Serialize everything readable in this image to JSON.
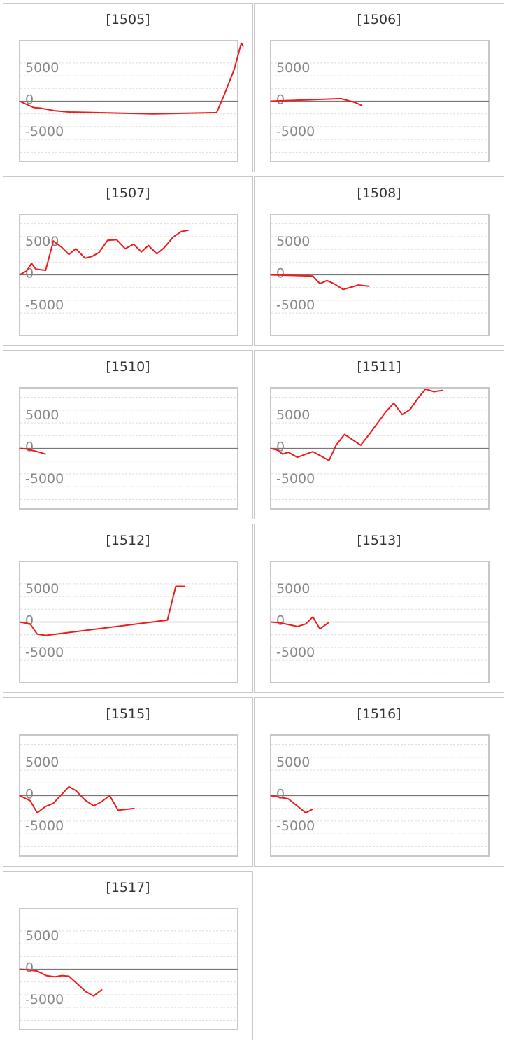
{
  "colors": {
    "line": "#ee1c1c",
    "frame": "#c8c8c8",
    "grid": "#dddddd",
    "zero": "#777777",
    "text": "#333333",
    "tick": "#888888"
  },
  "chart_data": [
    {
      "type": "line",
      "title": "[1505]",
      "ylim": [
        -9500,
        9500
      ],
      "yticks": [
        5000,
        0,
        -5000
      ],
      "xlim": [
        0,
        31
      ],
      "x": [
        0,
        2,
        3,
        5,
        7,
        19,
        28,
        29,
        30.5,
        31.5,
        31.8
      ],
      "values": [
        0,
        -1000,
        -1100,
        -1500,
        -1700,
        -2000,
        -1800,
        800,
        5000,
        9100,
        8600
      ]
    },
    {
      "type": "line",
      "title": "[1506]",
      "ylim": [
        -9500,
        9500
      ],
      "yticks": [
        5000,
        0,
        -5000
      ],
      "xlim": [
        0,
        31
      ],
      "x": [
        0,
        10,
        12,
        13
      ],
      "values": [
        0,
        400,
        -200,
        -700
      ]
    },
    {
      "type": "line",
      "title": "[1507]",
      "ylim": [
        -9500,
        9500
      ],
      "yticks": [
        5000,
        0,
        -5000
      ],
      "xlim": [
        0,
        31
      ],
      "x": [
        0,
        1,
        1.7,
        2.3,
        3.7,
        4.8,
        6,
        7,
        8,
        9.3,
        10.3,
        11.3,
        12.5,
        13.8,
        15,
        16.2,
        17.3,
        18.3,
        19.5,
        20.5,
        21.8,
        23,
        24
      ],
      "values": [
        0,
        600,
        1800,
        900,
        700,
        5300,
        4300,
        3200,
        4100,
        2600,
        2900,
        3500,
        5400,
        5500,
        4100,
        4800,
        3600,
        4600,
        3300,
        4200,
        5900,
        6800,
        7000
      ]
    },
    {
      "type": "line",
      "title": "[1508]",
      "ylim": [
        -9500,
        9500
      ],
      "yticks": [
        5000,
        0,
        -5000
      ],
      "xlim": [
        0,
        31
      ],
      "x": [
        0,
        6,
        7,
        8,
        9,
        10.3,
        12.5,
        14
      ],
      "values": [
        0,
        -200,
        -1400,
        -900,
        -1400,
        -2300,
        -1600,
        -1800
      ]
    },
    {
      "type": "line",
      "title": "[1510]",
      "ylim": [
        -9500,
        9500
      ],
      "yticks": [
        5000,
        0,
        -5000
      ],
      "xlim": [
        0,
        31
      ],
      "x": [
        0,
        1,
        2.5,
        3.7
      ],
      "values": [
        0,
        -100,
        -500,
        -900
      ]
    },
    {
      "type": "line",
      "title": "[1511]",
      "ylim": [
        -9500,
        9500
      ],
      "yticks": [
        5000,
        0,
        -5000
      ],
      "xlim": [
        0,
        31
      ],
      "x": [
        0,
        1,
        1.7,
        2.5,
        3.8,
        6,
        8.3,
        9.3,
        10.5,
        12.8,
        14,
        15.2,
        16.4,
        17.5,
        18.7,
        19.8,
        20.9,
        22,
        23.2,
        24.4
      ],
      "values": [
        0,
        -300,
        -900,
        -600,
        -1400,
        -500,
        -1900,
        500,
        2200,
        500,
        2200,
        4000,
        5800,
        7100,
        5300,
        6100,
        7800,
        9300,
        8900,
        9100
      ]
    },
    {
      "type": "line",
      "title": "[1512]",
      "ylim": [
        -9500,
        9500
      ],
      "yticks": [
        5000,
        0,
        -5000
      ],
      "xlim": [
        0,
        31
      ],
      "x": [
        0,
        1.5,
        2.5,
        3.7,
        21,
        22.2,
        23.5
      ],
      "values": [
        0,
        -300,
        -1900,
        -2100,
        300,
        5600,
        5600
      ]
    },
    {
      "type": "line",
      "title": "[1513]",
      "ylim": [
        -9500,
        9500
      ],
      "yticks": [
        5000,
        0,
        -5000
      ],
      "xlim": [
        0,
        31
      ],
      "x": [
        0,
        1.2,
        2.5,
        3.8,
        5,
        6,
        7,
        8.2
      ],
      "values": [
        0,
        -100,
        -400,
        -700,
        -300,
        800,
        -1100,
        -100
      ]
    },
    {
      "type": "line",
      "title": "[1515]",
      "ylim": [
        -9500,
        9500
      ],
      "yticks": [
        5000,
        0,
        -5000
      ],
      "xlim": [
        0,
        31
      ],
      "x": [
        0,
        1.5,
        2.5,
        3.7,
        4.8,
        7,
        8,
        9.3,
        10.5,
        11.6,
        12.8,
        14,
        16.3
      ],
      "values": [
        0,
        -800,
        -2700,
        -1700,
        -1200,
        1400,
        800,
        -700,
        -1600,
        -1000,
        0,
        -2300,
        -2000
      ]
    },
    {
      "type": "line",
      "title": "[1516]",
      "ylim": [
        -9500,
        9500
      ],
      "yticks": [
        5000,
        0,
        -5000
      ],
      "xlim": [
        0,
        31
      ],
      "x": [
        0,
        2.5,
        5,
        6
      ],
      "values": [
        0,
        -500,
        -2700,
        -2100
      ]
    },
    {
      "type": "line",
      "title": "[1517]",
      "ylim": [
        -9500,
        9500
      ],
      "yticks": [
        5000,
        0,
        -5000
      ],
      "xlim": [
        0,
        31
      ],
      "x": [
        0,
        1.2,
        2.5,
        3.8,
        5,
        6,
        7,
        8.2,
        9.4,
        10.5,
        11.7
      ],
      "values": [
        0,
        -100,
        -300,
        -1000,
        -1200,
        -1000,
        -1100,
        -2300,
        -3500,
        -4200,
        -3200
      ]
    }
  ]
}
